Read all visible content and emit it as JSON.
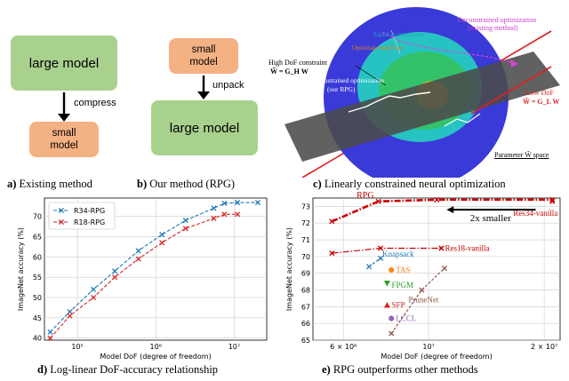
{
  "panel_a": {
    "large_model": "large model",
    "small_model_line1": "small",
    "small_model_line2": "model",
    "arrow_label": "compress",
    "caption_letter": "a)",
    "caption_text": "Existing method"
  },
  "panel_b": {
    "small_model_line1": "small",
    "small_model_line2": "model",
    "large_model": "large model",
    "arrow_label": "unpack",
    "caption_letter": "b)",
    "caption_text": "Our method (RPG)"
  },
  "panel_c": {
    "unconstrained": "Unconstrained optimization",
    "unconstrained_sub": "(existing method)",
    "equal_accuracy": "Equal-accuracy set",
    "optional_model": "Optional model set",
    "high_dof_line1": "High DoF constraint",
    "high_dof_line2": "W̃ = G_H W",
    "constrained_line1": "Constrained optimization",
    "constrained_line2": "(our RPG)",
    "low_dof_line1": "Low DoF",
    "low_dof_line2": "W̃ = G_L W",
    "param_space": "Parameter W̃ space",
    "caption_letter": "c)",
    "caption_text": "Linearly constrained neural optimization"
  },
  "panel_d": {
    "caption_letter": "d)",
    "caption_text": "Log-linear DoF-accuracy relationship"
  },
  "panel_e": {
    "caption_letter": "e)",
    "caption_text": "RPG outperforms other methods",
    "annotation": "2x smaller"
  },
  "chart_data": [
    {
      "type": "line",
      "xscale": "log",
      "xlabel": "Model DoF (degree of freedom)",
      "ylabel": "ImageNet accuracy (%)",
      "xlim": [
        38000,
        26000000
      ],
      "ylim": [
        39.5,
        74.5
      ],
      "xticks": [
        {
          "v": 100000,
          "label": "10⁵"
        },
        {
          "v": 1000000,
          "label": "10⁶"
        },
        {
          "v": 10000000,
          "label": "10⁷"
        }
      ],
      "yticks": [
        40,
        45,
        50,
        55,
        60,
        65,
        70
      ],
      "grid": true,
      "legend_position": "top-left",
      "series": [
        {
          "name": "R34-RPG",
          "color": "#1f77b4",
          "marker": "x",
          "x": [
            45000,
            80000,
            160000,
            300000,
            600000,
            1200000,
            2400000,
            5500000,
            7500000,
            11000000,
            20000000
          ],
          "y": [
            41.5,
            46.5,
            52.0,
            56.5,
            61.5,
            65.5,
            69.0,
            72.0,
            73.2,
            73.4,
            73.4
          ]
        },
        {
          "name": "R18-RPG",
          "color": "#d62728",
          "marker": "x",
          "x": [
            45000,
            80000,
            160000,
            300000,
            600000,
            1200000,
            2400000,
            5500000,
            7500000,
            11000000
          ],
          "y": [
            40.0,
            45.5,
            50.0,
            55.0,
            59.5,
            63.5,
            67.0,
            69.5,
            70.5,
            70.5
          ]
        }
      ]
    },
    {
      "type": "scatter",
      "xscale": "log",
      "xlabel": "Model DoF (degree of freedom)",
      "ylabel": "ImageNet accuracy (%)",
      "xlim": [
        5000000,
        22000000
      ],
      "ylim": [
        65,
        73.5
      ],
      "xticks": [
        {
          "v": 6000000,
          "label": "6 × 10⁶"
        },
        {
          "v": 10000000,
          "label": "10⁷"
        },
        {
          "v": 20000000,
          "label": "2 × 10⁷"
        }
      ],
      "yticks": [
        65,
        66,
        67,
        68,
        69,
        70,
        71,
        72,
        73
      ],
      "grid": true,
      "series": [
        {
          "name": "RPG",
          "color": "#cc0000",
          "style": "dashdot-bold",
          "marker": "x",
          "x": [
            5600000,
            7400000,
            10500000,
            21000000
          ],
          "y": [
            72.1,
            73.3,
            73.4,
            73.4
          ]
        },
        {
          "name": "Res34-vanilla",
          "color": "#cc0000",
          "style": "point",
          "marker": "x",
          "x": [
            21000000
          ],
          "y": [
            73.3
          ]
        },
        {
          "name": "RPG",
          "color": "#cc0000",
          "style": "dashdot",
          "marker": "x",
          "x": [
            5600000,
            7500000,
            10800000
          ],
          "y": [
            70.2,
            70.5,
            70.5
          ]
        },
        {
          "name": "Res18-vanilla",
          "color": "#cc0000",
          "style": "point",
          "marker": "x",
          "x": [
            10800000
          ],
          "y": [
            70.5
          ]
        },
        {
          "name": "Knapsack",
          "color": "#1f77b4",
          "style": "dashed",
          "marker": "x",
          "x": [
            7000000,
            7500000
          ],
          "y": [
            69.4,
            69.9
          ]
        },
        {
          "name": "TAS",
          "color": "#ff7f0e",
          "style": "point",
          "marker": "o",
          "x": [
            8000000
          ],
          "y": [
            69.2
          ]
        },
        {
          "name": "FPGM",
          "color": "#2ca02c",
          "style": "point",
          "marker": "v",
          "x": [
            7800000
          ],
          "y": [
            68.4
          ]
        },
        {
          "name": "SFP",
          "color": "#d62728",
          "style": "point",
          "marker": "^",
          "x": [
            7800000
          ],
          "y": [
            67.1
          ]
        },
        {
          "name": "LCCL",
          "color": "#9467bd",
          "style": "point",
          "marker": "h",
          "x": [
            8000000
          ],
          "y": [
            66.3
          ]
        },
        {
          "name": "PruneNet",
          "color": "#8c564b",
          "style": "dashed",
          "marker": "x",
          "x": [
            8000000,
            9600000,
            11000000
          ],
          "y": [
            65.4,
            68.0,
            69.3
          ]
        }
      ]
    }
  ]
}
